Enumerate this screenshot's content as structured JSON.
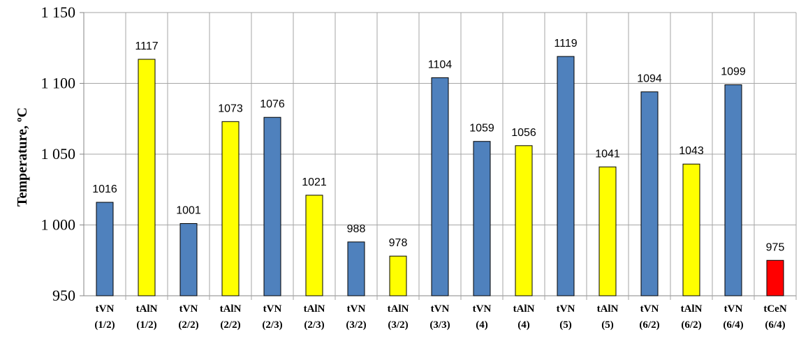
{
  "chart_data": {
    "type": "bar",
    "title": "",
    "xlabel": "",
    "ylabel": "Temperature, ºC",
    "ylim": [
      950,
      1150
    ],
    "yticks": [
      950,
      1000,
      1050,
      1100,
      1150
    ],
    "ytick_labels": [
      "950",
      "1 000",
      "1 050",
      "1 100",
      "1 150"
    ],
    "grid": "both",
    "categories": [
      [
        "tVN",
        "(1/2)"
      ],
      [
        "tAlN",
        "(1/2)"
      ],
      [
        "tVN",
        "(2/2)"
      ],
      [
        "tAlN",
        "(2/2)"
      ],
      [
        "tVN",
        "(2/3)"
      ],
      [
        "tAlN",
        "(2/3)"
      ],
      [
        "tVN",
        "(3/2)"
      ],
      [
        "tAlN",
        "(3/2)"
      ],
      [
        "tVN",
        "(3/3)"
      ],
      [
        "tVN",
        "(4)"
      ],
      [
        "tAlN",
        "(4)"
      ],
      [
        "tVN",
        "(5)"
      ],
      [
        "tAlN",
        "(5)"
      ],
      [
        "tVN",
        "(6/2)"
      ],
      [
        "tAlN",
        "(6/2)"
      ],
      [
        "tVN",
        "(6/4)"
      ],
      [
        "tCeN",
        "(6/4)"
      ]
    ],
    "values": [
      1016,
      1117,
      1001,
      1073,
      1076,
      1021,
      988,
      978,
      1104,
      1059,
      1056,
      1119,
      1041,
      1094,
      1043,
      1099,
      975
    ],
    "bar_colors": [
      "#4F81BD",
      "#FFFF00",
      "#4F81BD",
      "#FFFF00",
      "#4F81BD",
      "#FFFF00",
      "#4F81BD",
      "#FFFF00",
      "#4F81BD",
      "#4F81BD",
      "#FFFF00",
      "#4F81BD",
      "#FFFF00",
      "#4F81BD",
      "#FFFF00",
      "#4F81BD",
      "#FF0000"
    ],
    "data_labels": true
  }
}
